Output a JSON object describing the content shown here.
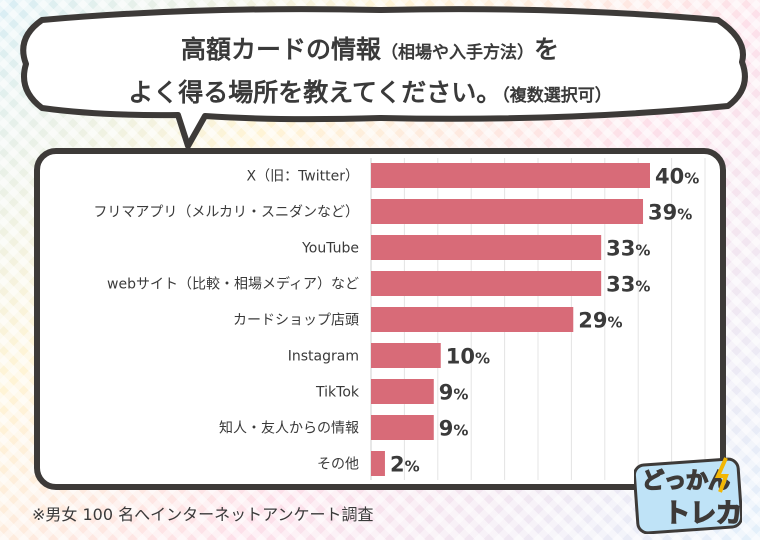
{
  "title": {
    "line1_main": "高額カードの情報",
    "line1_paren": "（相場や入手方法）",
    "line1_tail": "を",
    "line2_main": "よく得る場所を教えてください。",
    "line2_paren": "（複数選択可）"
  },
  "footnote": "※男女 100 名へインターネットアンケート調査",
  "logo": {
    "top": "どっかんっ",
    "bottom": "トレカ"
  },
  "colors": {
    "bar": "#d86b78",
    "text": "#3a3a3a",
    "frame": "#3d3a38"
  },
  "chart_data": {
    "type": "bar",
    "orientation": "horizontal",
    "unit": "%",
    "categories": [
      "X（旧：Twitter）",
      "フリマアプリ（メルカリ・スニダンなど）",
      "YouTube",
      "webサイト（比較・相場メディア）など",
      "カードショップ店頭",
      "Instagram",
      "TikTok",
      "知人・友人からの情報",
      "その他"
    ],
    "values": [
      40,
      39,
      33,
      33,
      29,
      10,
      9,
      9,
      2
    ],
    "labels": [
      "40%",
      "39%",
      "33%",
      "33%",
      "29%",
      "10%",
      "9%",
      "9%",
      "2%"
    ],
    "grid": true
  }
}
